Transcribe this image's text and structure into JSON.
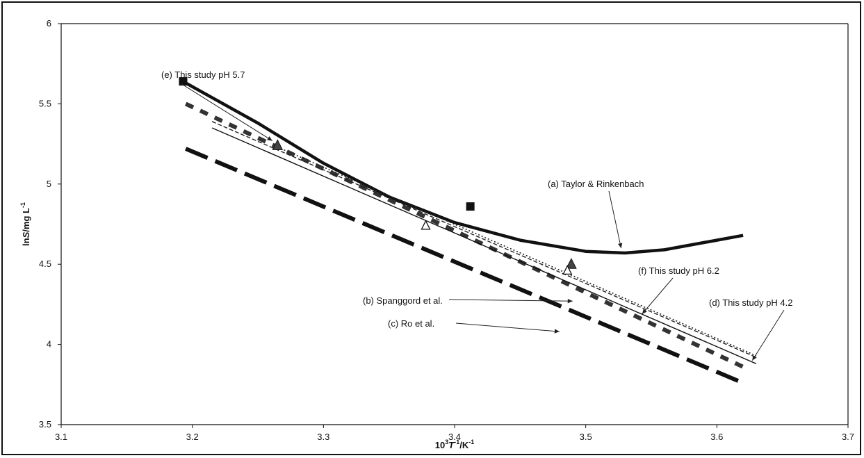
{
  "chart_data": {
    "type": "line",
    "xlabel": {
      "main": "10",
      "sup1": "3",
      "ital": "T",
      "sup2": "-1",
      "tail": "/K",
      "sup3": "-1"
    },
    "ylabel": {
      "pre": "ln",
      "ital": "S",
      "tail": "/mg L",
      "sup": "-1"
    },
    "xlim": [
      3.1,
      3.7
    ],
    "ylim": [
      3.5,
      6.0
    ],
    "xticks": [
      "3.1",
      "3.2",
      "3.3",
      "3.4",
      "3.5",
      "3.6",
      "3.7"
    ],
    "yticks": [
      "3.5",
      "4",
      "4.5",
      "5",
      "5.5",
      "6"
    ],
    "x_tick_values": [
      3.1,
      3.2,
      3.3,
      3.4,
      3.5,
      3.6,
      3.7
    ],
    "y_tick_values": [
      3.5,
      4.0,
      4.5,
      5.0,
      5.5,
      6.0
    ],
    "grid": false,
    "series": [
      {
        "name": "(a) Taylor & Rinkenbach",
        "style": "thick-solid",
        "x": [
          3.195,
          3.25,
          3.3,
          3.35,
          3.4,
          3.45,
          3.5,
          3.53,
          3.56,
          3.6,
          3.62
        ],
        "y": [
          5.63,
          5.38,
          5.13,
          4.92,
          4.76,
          4.65,
          4.58,
          4.57,
          4.59,
          4.65,
          4.68
        ]
      },
      {
        "name": "(b) Spanggord et al.",
        "style": "medium-dash",
        "x": [
          3.195,
          3.62
        ],
        "y": [
          5.5,
          3.86
        ]
      },
      {
        "name": "(c) Ro et al.",
        "style": "long-dash",
        "x": [
          3.195,
          3.62
        ],
        "y": [
          5.22,
          3.76
        ]
      },
      {
        "name": "(d) This study pH 4.2",
        "style": "thin-solid",
        "x": [
          3.215,
          3.63
        ],
        "y": [
          5.35,
          3.88
        ]
      },
      {
        "name": "(e) This study pH 5.7",
        "style": "thin-dash",
        "x": [
          3.215,
          3.63
        ],
        "y": [
          5.39,
          3.92
        ]
      },
      {
        "name": "(f) This study pH 6.2",
        "style": "dotted",
        "x": [
          3.265,
          3.63
        ],
        "y": [
          5.23,
          3.93
        ]
      }
    ],
    "points": [
      {
        "marker": "square",
        "x": [
          3.193,
          3.412
        ],
        "y": [
          5.64,
          4.86
        ]
      },
      {
        "marker": "triangle-filled",
        "x": [
          3.265,
          3.489
        ],
        "y": [
          5.24,
          4.5
        ]
      },
      {
        "marker": "triangle-open",
        "x": [
          3.378,
          3.486
        ],
        "y": [
          4.74,
          4.46
        ]
      }
    ],
    "annotations": [
      {
        "text": "(e) This study pH 5.7",
        "target_x": 3.261,
        "target_y": 5.27
      },
      {
        "text": "(a) Taylor & Rinkenbach",
        "target_x": 3.527,
        "target_y": 4.6
      },
      {
        "text": "(f) This study pH 6.2",
        "target_x": 3.543,
        "target_y": 4.19
      },
      {
        "text": "(b) Spanggord et al.",
        "target_x": 3.49,
        "target_y": 4.27
      },
      {
        "text": "(d) This study pH 4.2",
        "target_x": 3.627,
        "target_y": 3.9
      },
      {
        "text": "(c) Ro et al.",
        "target_x": 3.48,
        "target_y": 4.08
      }
    ]
  }
}
